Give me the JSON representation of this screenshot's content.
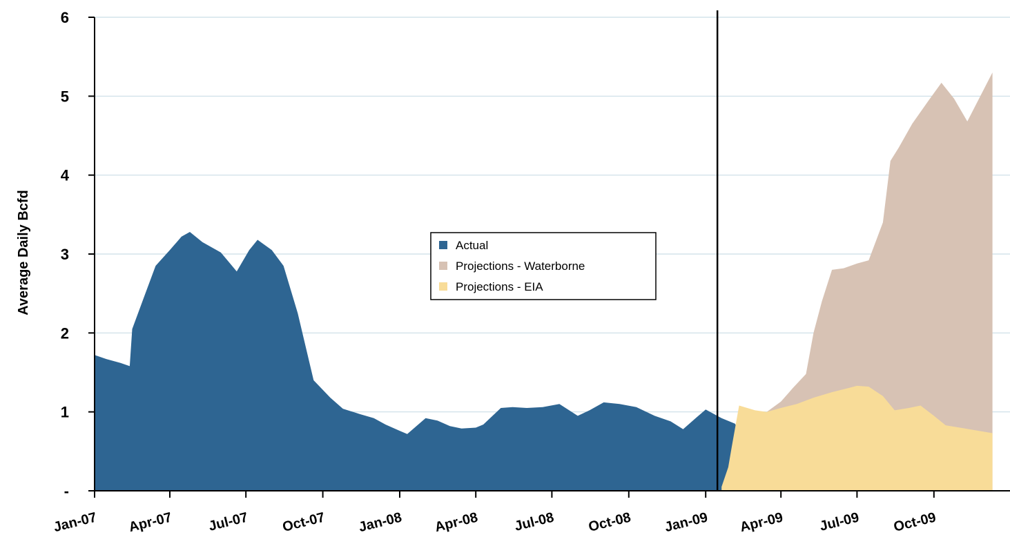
{
  "chart_data": {
    "type": "area",
    "ylabel": "Average Daily Bcfd",
    "ylim": [
      0,
      6
    ],
    "yticks": [
      {
        "value": 0,
        "label": "-"
      },
      {
        "value": 1,
        "label": "1"
      },
      {
        "value": 2,
        "label": "2"
      },
      {
        "value": 3,
        "label": "3"
      },
      {
        "value": 4,
        "label": "4"
      },
      {
        "value": 5,
        "label": "5"
      },
      {
        "value": 6,
        "label": "6"
      }
    ],
    "xlim": [
      "2007-01-01",
      "2009-12-31"
    ],
    "xticks": [
      {
        "date": "2007-01-01",
        "label": "Jan-07"
      },
      {
        "date": "2007-04-01",
        "label": "Apr-07"
      },
      {
        "date": "2007-07-01",
        "label": "Jul-07"
      },
      {
        "date": "2007-10-01",
        "label": "Oct-07"
      },
      {
        "date": "2008-01-01",
        "label": "Jan-08"
      },
      {
        "date": "2008-04-01",
        "label": "Apr-08"
      },
      {
        "date": "2008-07-01",
        "label": "Jul-08"
      },
      {
        "date": "2008-10-01",
        "label": "Oct-08"
      },
      {
        "date": "2009-01-01",
        "label": "Jan-09"
      },
      {
        "date": "2009-04-01",
        "label": "Apr-09"
      },
      {
        "date": "2009-07-01",
        "label": "Jul-09"
      },
      {
        "date": "2009-10-01",
        "label": "Oct-09"
      }
    ],
    "grid": true,
    "legend_position": "center",
    "divider_date": "2009-01-15",
    "series": [
      {
        "name": "Actual",
        "color": "#2e6592",
        "points": [
          [
            "2007-01-01",
            1.72
          ],
          [
            "2007-01-15",
            1.67
          ],
          [
            "2007-02-01",
            1.62
          ],
          [
            "2007-02-12",
            1.58
          ],
          [
            "2007-02-15",
            2.05
          ],
          [
            "2007-03-01",
            2.45
          ],
          [
            "2007-03-15",
            2.85
          ],
          [
            "2007-04-01",
            3.05
          ],
          [
            "2007-04-15",
            3.22
          ],
          [
            "2007-04-25",
            3.28
          ],
          [
            "2007-05-10",
            3.15
          ],
          [
            "2007-06-01",
            3.02
          ],
          [
            "2007-06-20",
            2.78
          ],
          [
            "2007-07-05",
            3.05
          ],
          [
            "2007-07-15",
            3.18
          ],
          [
            "2007-08-01",
            3.05
          ],
          [
            "2007-08-15",
            2.85
          ],
          [
            "2007-09-01",
            2.25
          ],
          [
            "2007-09-20",
            1.4
          ],
          [
            "2007-10-10",
            1.18
          ],
          [
            "2007-10-25",
            1.04
          ],
          [
            "2007-11-15",
            0.97
          ],
          [
            "2007-12-01",
            0.92
          ],
          [
            "2007-12-15",
            0.84
          ],
          [
            "2008-01-01",
            0.76
          ],
          [
            "2008-01-10",
            0.72
          ],
          [
            "2008-02-01",
            0.92
          ],
          [
            "2008-02-15",
            0.89
          ],
          [
            "2008-03-01",
            0.82
          ],
          [
            "2008-03-15",
            0.79
          ],
          [
            "2008-04-01",
            0.8
          ],
          [
            "2008-04-10",
            0.84
          ],
          [
            "2008-05-01",
            1.05
          ],
          [
            "2008-05-15",
            1.06
          ],
          [
            "2008-06-01",
            1.05
          ],
          [
            "2008-06-20",
            1.06
          ],
          [
            "2008-07-10",
            1.1
          ],
          [
            "2008-08-01",
            0.95
          ],
          [
            "2008-08-15",
            1.02
          ],
          [
            "2008-09-01",
            1.12
          ],
          [
            "2008-09-20",
            1.1
          ],
          [
            "2008-10-10",
            1.06
          ],
          [
            "2008-11-01",
            0.95
          ],
          [
            "2008-11-20",
            0.88
          ],
          [
            "2008-12-05",
            0.78
          ],
          [
            "2008-12-20",
            0.92
          ],
          [
            "2009-01-01",
            1.03
          ],
          [
            "2009-01-20",
            0.92
          ],
          [
            "2009-02-05",
            0.85
          ],
          [
            "2009-02-25",
            0.48
          ]
        ]
      },
      {
        "name": "Projections - Waterborne",
        "color": "#d7c2b4",
        "points": [
          [
            "2009-02-20",
            0.5
          ],
          [
            "2009-03-05",
            0.86
          ],
          [
            "2009-03-15",
            1.0
          ],
          [
            "2009-04-01",
            1.13
          ],
          [
            "2009-04-15",
            1.3
          ],
          [
            "2009-05-01",
            1.48
          ],
          [
            "2009-05-10",
            2.0
          ],
          [
            "2009-05-20",
            2.4
          ],
          [
            "2009-06-01",
            2.8
          ],
          [
            "2009-06-15",
            2.82
          ],
          [
            "2009-07-01",
            2.88
          ],
          [
            "2009-07-15",
            2.92
          ],
          [
            "2009-08-01",
            3.4
          ],
          [
            "2009-08-10",
            4.18
          ],
          [
            "2009-08-20",
            4.35
          ],
          [
            "2009-09-05",
            4.65
          ],
          [
            "2009-09-25",
            4.95
          ],
          [
            "2009-10-10",
            5.17
          ],
          [
            "2009-10-25",
            4.97
          ],
          [
            "2009-11-10",
            4.68
          ],
          [
            "2009-12-10",
            5.3
          ]
        ]
      },
      {
        "name": "Projections - EIA",
        "color": "#f8dc98",
        "points": [
          [
            "2009-01-20",
            0.05
          ],
          [
            "2009-01-28",
            0.3
          ],
          [
            "2009-02-01",
            0.55
          ],
          [
            "2009-02-10",
            1.08
          ],
          [
            "2009-03-01",
            1.02
          ],
          [
            "2009-03-15",
            1.0
          ],
          [
            "2009-04-01",
            1.05
          ],
          [
            "2009-04-20",
            1.1
          ],
          [
            "2009-05-10",
            1.18
          ],
          [
            "2009-06-01",
            1.25
          ],
          [
            "2009-06-20",
            1.3
          ],
          [
            "2009-07-01",
            1.33
          ],
          [
            "2009-07-15",
            1.32
          ],
          [
            "2009-08-01",
            1.2
          ],
          [
            "2009-08-15",
            1.02
          ],
          [
            "2009-09-01",
            1.05
          ],
          [
            "2009-09-15",
            1.08
          ],
          [
            "2009-10-01",
            0.95
          ],
          [
            "2009-10-15",
            0.83
          ],
          [
            "2009-11-01",
            0.8
          ],
          [
            "2009-12-10",
            0.73
          ]
        ]
      }
    ]
  }
}
